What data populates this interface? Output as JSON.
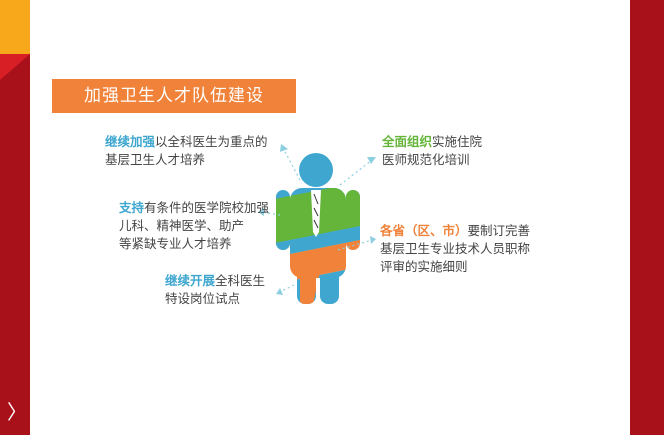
{
  "title": "加强卫生人才队伍建设",
  "colors": {
    "accent_red": "#a8101a",
    "accent_orange": "#f0823a",
    "accent_yellow": "#f7a81b",
    "blue": "#3fa7cf",
    "green": "#65b53a"
  },
  "nav": {
    "next_icon": "chevron-right-icon",
    "next_glyph": "〉"
  },
  "points": {
    "top_left": {
      "highlight": "继续加强",
      "line1": "以全科医生为重点的",
      "line2": "基层卫生人才培养"
    },
    "mid_left": {
      "highlight": "支持",
      "line1": "有条件的医学院校加强",
      "line2": "儿科、精神医学、助产",
      "line3": "等紧缺专业人才培养"
    },
    "bottom_left": {
      "highlight": "继续开展",
      "line1": "全科医生",
      "line2": "特设岗位试点"
    },
    "top_right": {
      "highlight": "全面组织",
      "line1": "实施住院",
      "line2": "医师规范化培训"
    },
    "mid_right": {
      "highlight": "各省（区、市）",
      "line1": "要制订完善",
      "line2": "基层卫生专业技术人员职称",
      "line3": "评审的实施细则"
    }
  }
}
